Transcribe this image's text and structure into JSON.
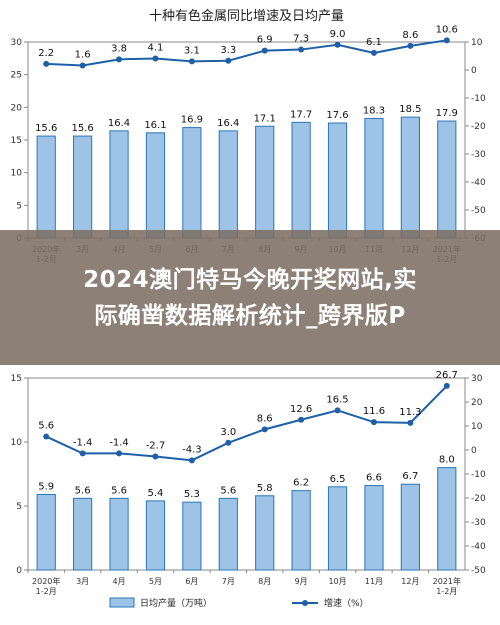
{
  "banner": {
    "line1": "2024澳门特马今晚开奖网站,实",
    "line2": "际确凿数据解析统计_跨界版P"
  },
  "legend": {
    "bar_label": "日均产量（万吨）",
    "line_label": "增速（%）"
  },
  "colors": {
    "bar_fill": "#9dc3e6",
    "bar_stroke": "#2e75b6",
    "line": "#1f5fa8",
    "axis": "#888888"
  },
  "chart_data": [
    {
      "type": "bar",
      "title": "十种有色金属同比增速及日均产量",
      "categories": [
        "2020年\n1-2月",
        "3月",
        "4月",
        "5月",
        "6月",
        "7月",
        "8月",
        "9月",
        "10月",
        "11月",
        "12月",
        "2021年\n1-2月"
      ],
      "series": [
        {
          "name": "日均产量（万吨）",
          "type": "bar",
          "axis": "left",
          "values": [
            15.6,
            15.6,
            16.4,
            16.1,
            16.9,
            16.4,
            17.1,
            17.7,
            17.6,
            18.3,
            18.5,
            17.9
          ]
        },
        {
          "name": "增速（%）",
          "type": "line",
          "axis": "right",
          "values": [
            2.2,
            1.6,
            3.8,
            4.1,
            3.1,
            3.3,
            6.9,
            7.3,
            9.0,
            6.1,
            8.6,
            10.6
          ]
        }
      ],
      "y_left": {
        "min": 0,
        "max": 30,
        "ticks": [
          0,
          5,
          10,
          15,
          20,
          25,
          30
        ]
      },
      "y_right": {
        "min": -60,
        "max": 10,
        "ticks": [
          -60,
          -50,
          -40,
          -30,
          -20,
          -10,
          0,
          10
        ]
      },
      "grid": false,
      "legend": "bottom"
    },
    {
      "type": "bar",
      "title": "",
      "categories": [
        "2020年\n1-2月",
        "3月",
        "4月",
        "5月",
        "6月",
        "7月",
        "8月",
        "9月",
        "10月",
        "11月",
        "12月",
        "2021年\n1-2月"
      ],
      "series": [
        {
          "name": "日均产量（万吨）",
          "type": "bar",
          "axis": "left",
          "values": [
            5.9,
            5.6,
            5.6,
            5.4,
            5.3,
            5.6,
            5.8,
            6.2,
            6.5,
            6.6,
            6.7,
            8.0
          ]
        },
        {
          "name": "增速（%）",
          "type": "line",
          "axis": "right",
          "values": [
            5.6,
            -1.4,
            -1.4,
            -2.7,
            -4.3,
            3.0,
            8.6,
            12.6,
            16.5,
            11.6,
            11.3,
            26.7
          ]
        }
      ],
      "y_left": {
        "min": 0,
        "max": 15,
        "ticks": [
          0,
          5,
          10,
          15
        ]
      },
      "y_right": {
        "min": -50,
        "max": 30,
        "ticks": [
          -50,
          -40,
          -30,
          -20,
          -10,
          0,
          10,
          20,
          30
        ]
      },
      "grid": false,
      "legend": "bottom"
    }
  ]
}
